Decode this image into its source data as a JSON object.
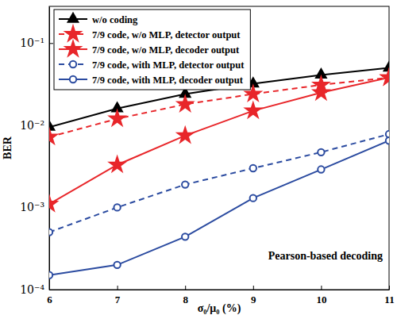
{
  "chart_data": {
    "type": "line",
    "x_label": "σ₀/μ₀ (%)",
    "y_label": "BER",
    "annotation": "Pearson-based decoding",
    "log": "y",
    "legend": "top-left",
    "x": [
      6,
      7,
      8,
      9,
      10,
      11
    ],
    "xlim": [
      6,
      11
    ],
    "xticks": [
      6,
      7,
      8,
      9,
      10,
      11
    ],
    "ylim": [
      0.0001,
      0.28
    ],
    "yticks": [
      {
        "value": 0.0001,
        "label": "10⁻⁴"
      },
      {
        "value": 0.001,
        "label": "10⁻³"
      },
      {
        "value": 0.01,
        "label": "10⁻²"
      },
      {
        "value": 0.1,
        "label": "10⁻¹"
      }
    ],
    "series": [
      {
        "name": "w/o coding",
        "color": "#000000",
        "marker": "triangle",
        "line_style": "solid",
        "values": [
          0.0095,
          0.016,
          0.024,
          0.032,
          0.041,
          0.05
        ]
      },
      {
        "name": "7/9 code, w/o MLP, detector output",
        "color": "#e8262a",
        "marker": "star",
        "line_style": "dashed",
        "values": [
          0.0072,
          0.012,
          0.018,
          0.024,
          0.031,
          0.038
        ]
      },
      {
        "name": "7/9 code, w/o MLP, decoder output",
        "color": "#e8262a",
        "marker": "star",
        "line_style": "solid",
        "values": [
          0.0011,
          0.0033,
          0.0075,
          0.015,
          0.025,
          0.038
        ]
      },
      {
        "name": "7/9 code, with MLP, detector output",
        "color": "#2b4ba0",
        "marker": "circle",
        "line_style": "dashed",
        "values": [
          0.0005,
          0.001,
          0.0019,
          0.003,
          0.0047,
          0.0078
        ]
      },
      {
        "name": "7/9 code, with MLP, decoder output",
        "color": "#2b4ba0",
        "marker": "circle",
        "line_style": "solid",
        "values": [
          0.00015,
          0.0002,
          0.00044,
          0.0013,
          0.0029,
          0.0065
        ]
      }
    ]
  }
}
